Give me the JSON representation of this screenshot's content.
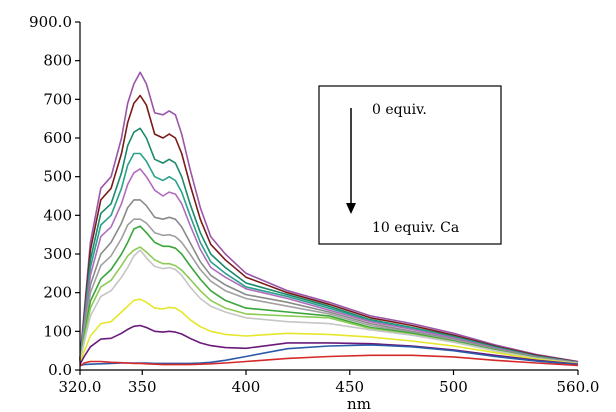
{
  "chart_data": {
    "type": "line",
    "xlabel": "nm",
    "ylabel": "",
    "xlim": [
      320,
      560
    ],
    "ylim": [
      0,
      900
    ],
    "x_ticks": [
      {
        "value": 320,
        "label": "320.0"
      },
      {
        "value": 350,
        "label": "350"
      },
      {
        "value": 400,
        "label": "400"
      },
      {
        "value": 450,
        "label": "450"
      },
      {
        "value": 500,
        "label": "500"
      },
      {
        "value": 560,
        "label": "560.0"
      }
    ],
    "y_ticks": [
      {
        "value": 0,
        "label": "0.0"
      },
      {
        "value": 100,
        "label": "100"
      },
      {
        "value": 200,
        "label": "200"
      },
      {
        "value": 300,
        "label": "300"
      },
      {
        "value": 400,
        "label": "400"
      },
      {
        "value": 500,
        "label": "500"
      },
      {
        "value": 600,
        "label": "600"
      },
      {
        "value": 700,
        "label": "700"
      },
      {
        "value": 800,
        "label": "800"
      },
      {
        "value": 900,
        "label": "900.0"
      }
    ],
    "grid": false,
    "annotation": {
      "top_label": "0 equiv.",
      "bottom_label": "10 equiv. Ca",
      "arrow": "down"
    },
    "x": [
      320,
      322,
      325,
      330,
      335,
      340,
      343,
      346,
      349,
      352,
      356,
      360,
      363,
      366,
      369,
      373,
      378,
      383,
      390,
      400,
      420,
      440,
      460,
      480,
      500,
      520,
      540,
      560
    ],
    "series": [
      {
        "color": "#9a55a8",
        "values": [
          30,
          150,
          330,
          470,
          500,
          600,
          690,
          740,
          770,
          740,
          665,
          660,
          670,
          660,
          610,
          520,
          420,
          345,
          300,
          250,
          205,
          175,
          140,
          120,
          95,
          65,
          40,
          22
        ]
      },
      {
        "color": "#7a1a1a",
        "values": [
          28,
          140,
          310,
          440,
          470,
          560,
          640,
          690,
          710,
          685,
          610,
          600,
          610,
          600,
          560,
          480,
          390,
          325,
          285,
          240,
          200,
          170,
          135,
          115,
          90,
          62,
          38,
          21
        ]
      },
      {
        "color": "#1a8a6a",
        "values": [
          27,
          130,
          285,
          405,
          430,
          510,
          580,
          615,
          625,
          600,
          545,
          535,
          545,
          535,
          500,
          430,
          355,
          300,
          265,
          225,
          195,
          165,
          130,
          110,
          87,
          60,
          36,
          20
        ]
      },
      {
        "color": "#2aa18a",
        "values": [
          26,
          122,
          265,
          375,
          400,
          470,
          530,
          560,
          560,
          540,
          500,
          490,
          500,
          490,
          460,
          400,
          330,
          280,
          250,
          215,
          190,
          160,
          128,
          108,
          85,
          58,
          35,
          20
        ]
      },
      {
        "color": "#b06cbf",
        "values": [
          25,
          115,
          245,
          345,
          370,
          430,
          480,
          510,
          520,
          500,
          465,
          450,
          460,
          455,
          430,
          375,
          312,
          265,
          240,
          210,
          185,
          155,
          125,
          105,
          83,
          57,
          34,
          19
        ]
      },
      {
        "color": "#8a8a8a",
        "values": [
          24,
          105,
          220,
          300,
          330,
          380,
          420,
          440,
          440,
          425,
          395,
          390,
          395,
          390,
          370,
          330,
          280,
          245,
          220,
          195,
          175,
          150,
          120,
          100,
          80,
          55,
          33,
          18
        ]
      },
      {
        "color": "#a0a0a0",
        "values": [
          23,
          97,
          200,
          270,
          295,
          340,
          375,
          390,
          390,
          380,
          355,
          348,
          350,
          345,
          330,
          300,
          260,
          230,
          205,
          185,
          165,
          145,
          115,
          97,
          78,
          53,
          32,
          18
        ]
      },
      {
        "color": "#3aa53a",
        "values": [
          22,
          88,
          178,
          235,
          260,
          300,
          330,
          365,
          372,
          355,
          330,
          320,
          320,
          315,
          300,
          270,
          235,
          205,
          180,
          160,
          150,
          140,
          110,
          95,
          75,
          52,
          31,
          17
        ]
      },
      {
        "color": "#8ccc55",
        "values": [
          21,
          80,
          160,
          215,
          232,
          270,
          295,
          310,
          318,
          305,
          285,
          275,
          275,
          270,
          258,
          235,
          205,
          180,
          160,
          145,
          140,
          135,
          107,
          92,
          73,
          50,
          30,
          17
        ]
      },
      {
        "color": "#c6c6c6",
        "values": [
          20,
          72,
          140,
          190,
          205,
          240,
          265,
          295,
          310,
          290,
          268,
          262,
          265,
          260,
          245,
          215,
          185,
          165,
          150,
          135,
          125,
          120,
          104,
          90,
          72,
          50,
          30,
          17
        ]
      },
      {
        "color": "#e6e62a",
        "values": [
          18,
          48,
          88,
          120,
          125,
          150,
          165,
          180,
          183,
          175,
          160,
          158,
          162,
          160,
          150,
          130,
          112,
          100,
          92,
          88,
          95,
          92,
          85,
          75,
          62,
          45,
          28,
          16
        ]
      },
      {
        "color": "#6a1a7a",
        "values": [
          15,
          35,
          60,
          80,
          82,
          95,
          105,
          113,
          115,
          110,
          100,
          98,
          100,
          98,
          93,
          82,
          70,
          63,
          58,
          56,
          70,
          70,
          68,
          62,
          52,
          38,
          25,
          15
        ]
      },
      {
        "color": "#2a5aa8",
        "values": [
          12,
          14,
          15,
          16,
          17,
          18,
          18,
          18,
          18,
          18,
          17,
          17,
          17,
          17,
          17,
          17,
          18,
          20,
          25,
          35,
          55,
          62,
          65,
          60,
          50,
          35,
          23,
          14
        ]
      },
      {
        "color": "#d42a2a",
        "values": [
          10,
          18,
          22,
          22,
          20,
          19,
          18,
          17,
          17,
          16,
          15,
          14,
          14,
          14,
          14,
          14,
          15,
          16,
          18,
          22,
          30,
          35,
          38,
          38,
          34,
          25,
          18,
          12
        ]
      }
    ]
  }
}
